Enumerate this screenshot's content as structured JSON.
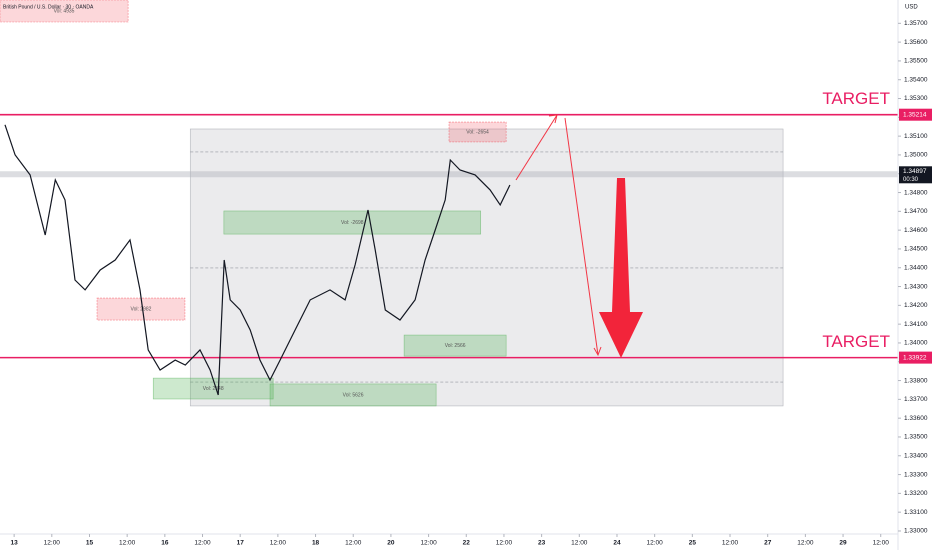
{
  "chart_data": {
    "type": "line",
    "title": "British Pound / U.S. Dollar · 30 · OANDA",
    "currency": "USD",
    "color": "#131722",
    "x": [
      -2.9,
      0.3,
      5.1,
      9.9,
      13.1,
      16.2,
      19.4,
      22.6,
      27.4,
      32.2,
      36.9,
      40.1,
      42.7,
      46.5,
      51.3,
      54.5,
      59.2,
      62.4,
      65,
      66.9,
      68.8,
      72,
      75.2,
      78.3,
      81.5,
      84.7,
      89.5,
      94.3,
      100.6,
      105.4,
      108.6,
      112.7,
      115,
      118.2,
      122.9,
      127.7,
      130.9,
      134.1,
      137.3,
      138.9,
      142,
      146.8,
      151.6,
      154.8,
      157.9
    ],
    "values": [
      1.3516,
      1.35,
      1.34894,
      1.34574,
      1.34867,
      1.34761,
      1.34335,
      1.34282,
      1.34388,
      1.34441,
      1.34548,
      1.34282,
      1.33963,
      1.33856,
      1.33909,
      1.33883,
      1.33963,
      1.33856,
      1.33723,
      1.34441,
      1.34229,
      1.34175,
      1.34069,
      1.33909,
      1.33803,
      1.33909,
      1.34069,
      1.34229,
      1.34282,
      1.34229,
      1.34415,
      1.34707,
      1.34495,
      1.34175,
      1.34122,
      1.34229,
      1.34441,
      1.34601,
      1.34761,
      1.34973,
      1.3492,
      1.34894,
      1.34814,
      1.34734,
      1.3484
    ],
    "xlim": [
      -4.5,
      281.5
    ],
    "ylim": [
      1.32952,
      1.35824
    ],
    "xticks": [
      {
        "value": 0,
        "label": "13"
      },
      {
        "value": 12,
        "label": "12:00"
      },
      {
        "value": 24,
        "label": "15"
      },
      {
        "value": 36,
        "label": "12:00"
      },
      {
        "value": 48,
        "label": "16"
      },
      {
        "value": 60,
        "label": "12:00"
      },
      {
        "value": 72,
        "label": "17"
      },
      {
        "value": 84,
        "label": "12:00"
      },
      {
        "value": 96,
        "label": "18"
      },
      {
        "value": 108,
        "label": "12:00"
      },
      {
        "value": 120,
        "label": "20"
      },
      {
        "value": 132,
        "label": "12:00"
      },
      {
        "value": 144,
        "label": "22"
      },
      {
        "value": 156,
        "label": "12:00"
      },
      {
        "value": 168,
        "label": "23"
      },
      {
        "value": 180,
        "label": "12:00"
      },
      {
        "value": 192,
        "label": "24"
      },
      {
        "value": 204,
        "label": "12:00"
      },
      {
        "value": 216,
        "label": "25"
      },
      {
        "value": 228,
        "label": "12:00"
      },
      {
        "value": 240,
        "label": "27"
      },
      {
        "value": 252,
        "label": "12:00"
      },
      {
        "value": 264,
        "label": "29"
      },
      {
        "value": 276,
        "label": "12:00"
      }
    ],
    "yticks": [
      {
        "value": 1.33,
        "label": "1.33000"
      },
      {
        "value": 1.331,
        "label": "1.33100"
      },
      {
        "value": 1.332,
        "label": "1.33200"
      },
      {
        "value": 1.333,
        "label": "1.33300"
      },
      {
        "value": 1.334,
        "label": "1.33400"
      },
      {
        "value": 1.335,
        "label": "1.33500"
      },
      {
        "value": 1.336,
        "label": "1.33600"
      },
      {
        "value": 1.337,
        "label": "1.33700"
      },
      {
        "value": 1.338,
        "label": "1.33800"
      },
      {
        "value": 1.339,
        "label": "1.33900"
      },
      {
        "value": 1.34,
        "label": "1.34000"
      },
      {
        "value": 1.341,
        "label": "1.34100"
      },
      {
        "value": 1.342,
        "label": "1.34200"
      },
      {
        "value": 1.343,
        "label": "1.34300"
      },
      {
        "value": 1.344,
        "label": "1.34400"
      },
      {
        "value": 1.345,
        "label": "1.34500"
      },
      {
        "value": 1.346,
        "label": "1.34600"
      },
      {
        "value": 1.347,
        "label": "1.34700"
      },
      {
        "value": 1.348,
        "label": "1.34800"
      },
      {
        "value": 1.349,
        "label": "1.34900"
      },
      {
        "value": 1.35,
        "label": "1.35000"
      },
      {
        "value": 1.351,
        "label": "1.35100"
      },
      {
        "value": 1.352,
        "label": "1.35200"
      },
      {
        "value": 1.353,
        "label": "1.35300"
      },
      {
        "value": 1.354,
        "label": "1.35400"
      },
      {
        "value": 1.355,
        "label": "1.35500"
      },
      {
        "value": 1.356,
        "label": "1.35600"
      },
      {
        "value": 1.357,
        "label": "1.35700"
      }
    ],
    "current_price": {
      "value": 1.34897,
      "label": "1.34897",
      "countdown": "00:30"
    },
    "levels": [
      {
        "value": 1.35214,
        "label": "1.35214",
        "text": "TARGET",
        "color": "#e91e63"
      },
      {
        "value": 1.33922,
        "label": "1.33922",
        "text": "TARGET",
        "color": "#e91e63"
      }
    ],
    "range_box": {
      "x": [
        56.1,
        244.9
      ],
      "y": [
        1.33665,
        1.35138
      ],
      "lines": [
        1.35016,
        1.34399,
        1.33792
      ]
    },
    "zones": [
      {
        "label": "Vol: 4935",
        "x": [
          -4.5,
          36.3
        ],
        "y": [
          1.35707,
          1.35824
        ],
        "kind": "sell"
      },
      {
        "label": "Vol: 2982",
        "x": [
          26.4,
          54.4
        ],
        "y": [
          1.34122,
          1.34239
        ],
        "kind": "sell"
      },
      {
        "label": "Vol: 2348",
        "x": [
          44.3,
          82.5
        ],
        "y": [
          1.33702,
          1.33813
        ],
        "kind": "buy"
      },
      {
        "label": "Vol: 5626",
        "x": [
          81.5,
          134.4
        ],
        "y": [
          1.33665,
          1.33782
        ],
        "kind": "buy"
      },
      {
        "label": "Vol: -2698",
        "x": [
          66.8,
          148.6
        ],
        "y": [
          1.34579,
          1.34702
        ],
        "kind": "buy"
      },
      {
        "label": "Vol: 2566",
        "x": [
          124.2,
          156.7
        ],
        "y": [
          1.3393,
          1.34042
        ],
        "kind": "buy"
      },
      {
        "label": "Vol: -2654",
        "x": [
          138.5,
          156.7
        ],
        "y": [
          1.35069,
          1.35175
        ],
        "kind": "sell"
      }
    ]
  }
}
